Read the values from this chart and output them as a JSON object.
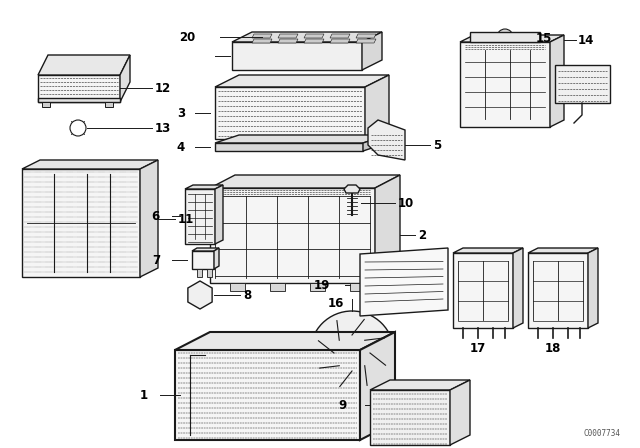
{
  "background_color": "#ffffff",
  "line_color": "#1a1a1a",
  "watermark": "C0007734",
  "figsize": [
    6.4,
    4.48
  ],
  "dpi": 100,
  "label_fontsize": 8.5,
  "label_fontweight": "bold"
}
